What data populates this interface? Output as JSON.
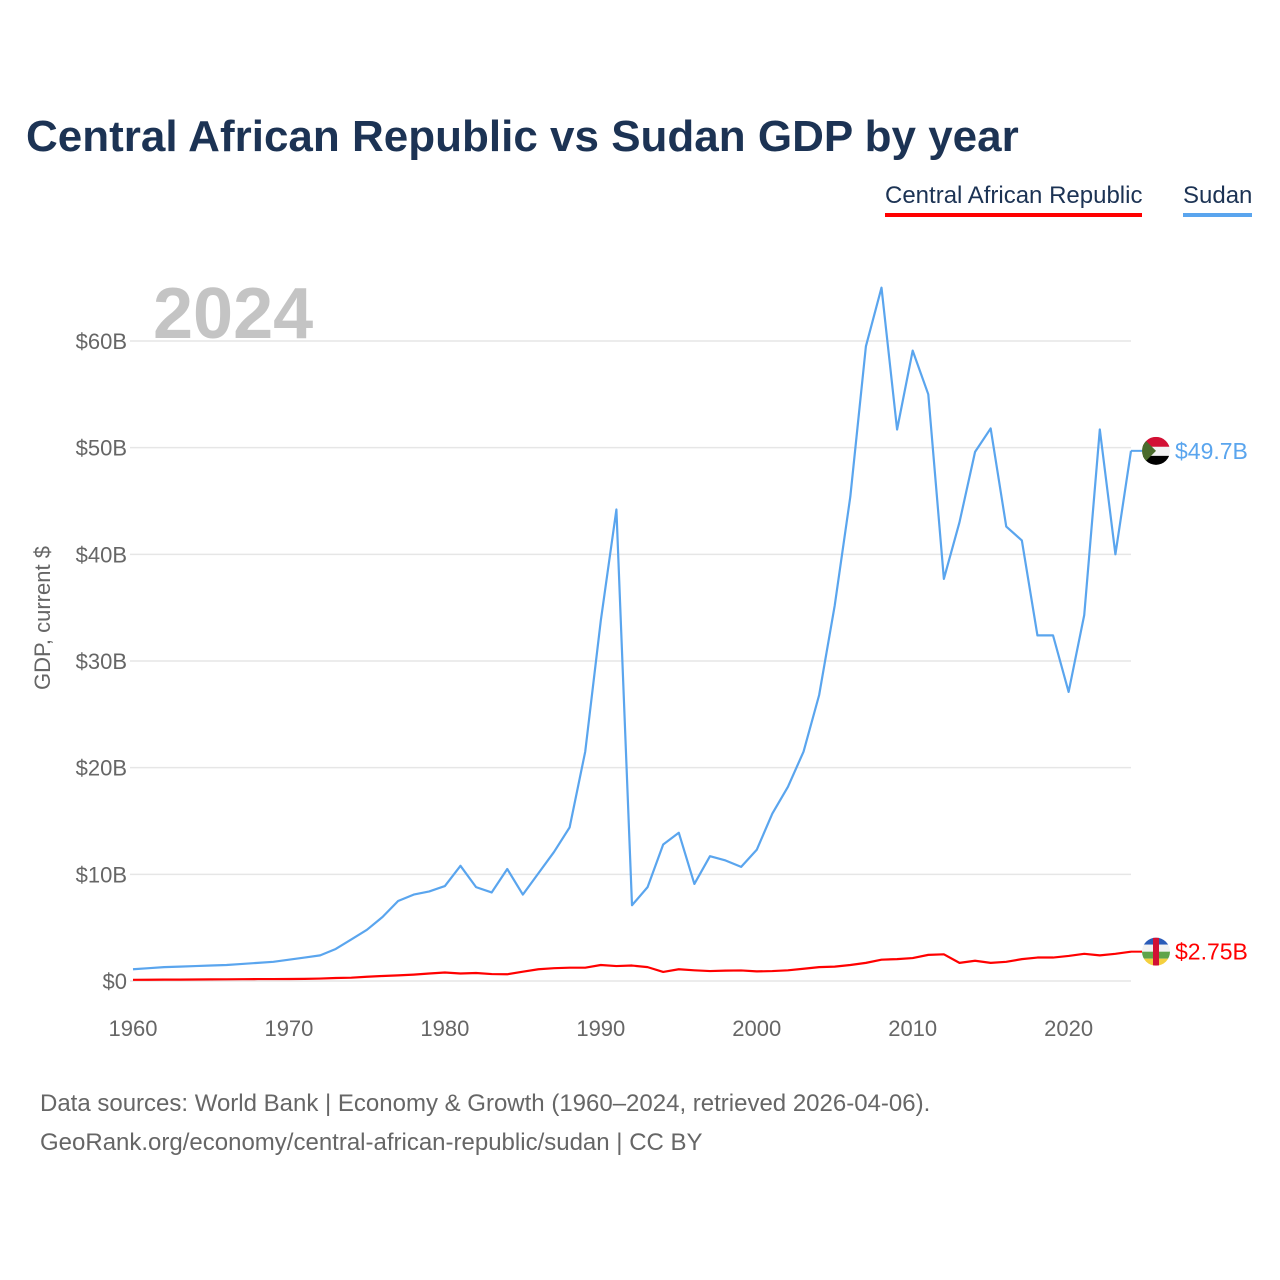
{
  "chart_data": {
    "type": "line",
    "title": "Central African Republic vs Sudan GDP by year",
    "ylabel": "GDP, current $",
    "xlabel": "",
    "year_label": "2024",
    "xlim": [
      1960,
      2024
    ],
    "ylim": [
      0,
      65
    ],
    "x_ticks": [
      "1960",
      "1970",
      "1980",
      "1990",
      "2000",
      "2010",
      "2020"
    ],
    "y_ticks": [
      "$0",
      "$10B",
      "$20B",
      "$30B",
      "$40B",
      "$50B",
      "$60B"
    ],
    "grid": true,
    "legend_placement": "top-right",
    "x": [
      1960,
      1961,
      1962,
      1963,
      1964,
      1965,
      1966,
      1967,
      1968,
      1969,
      1970,
      1971,
      1972,
      1973,
      1974,
      1975,
      1976,
      1977,
      1978,
      1979,
      1980,
      1981,
      1982,
      1983,
      1984,
      1985,
      1986,
      1987,
      1988,
      1989,
      1990,
      1991,
      1992,
      1993,
      1994,
      1995,
      1996,
      1997,
      1998,
      1999,
      2000,
      2001,
      2002,
      2003,
      2004,
      2005,
      2006,
      2007,
      2008,
      2009,
      2010,
      2011,
      2012,
      2013,
      2014,
      2015,
      2016,
      2017,
      2018,
      2019,
      2020,
      2021,
      2022,
      2023,
      2024
    ],
    "series": [
      {
        "name": "Central African Republic",
        "color": "#ff0000",
        "end_label": "$2.75B",
        "values": [
          0.11,
          0.12,
          0.13,
          0.13,
          0.14,
          0.15,
          0.16,
          0.17,
          0.18,
          0.18,
          0.19,
          0.2,
          0.23,
          0.28,
          0.31,
          0.4,
          0.47,
          0.53,
          0.6,
          0.7,
          0.8,
          0.7,
          0.75,
          0.65,
          0.63,
          0.87,
          1.1,
          1.2,
          1.25,
          1.25,
          1.5,
          1.4,
          1.45,
          1.3,
          0.85,
          1.1,
          1.0,
          0.93,
          0.97,
          0.99,
          0.9,
          0.93,
          1.0,
          1.15,
          1.3,
          1.35,
          1.5,
          1.7,
          2.0,
          2.05,
          2.15,
          2.45,
          2.5,
          1.7,
          1.9,
          1.7,
          1.8,
          2.05,
          2.2,
          2.2,
          2.35,
          2.55,
          2.4,
          2.55,
          2.75
        ]
      },
      {
        "name": "Sudan",
        "color": "#5aa5ee",
        "end_label": "$49.7B",
        "values": [
          1.1,
          1.2,
          1.3,
          1.35,
          1.4,
          1.45,
          1.5,
          1.6,
          1.7,
          1.8,
          2.0,
          2.2,
          2.4,
          3.0,
          3.9,
          4.8,
          6.0,
          7.5,
          8.1,
          8.4,
          8.9,
          10.8,
          8.8,
          8.3,
          10.5,
          8.1,
          10.1,
          12.1,
          14.4,
          21.5,
          33.8,
          44.2,
          7.1,
          8.8,
          12.8,
          13.9,
          9.1,
          11.7,
          11.3,
          10.7,
          12.3,
          15.7,
          18.2,
          21.5,
          26.8,
          35.2,
          45.4,
          59.5,
          65.0,
          51.7,
          59.1,
          55.0,
          37.7,
          43.0,
          49.6,
          51.8,
          42.6,
          41.3,
          32.4,
          32.4,
          27.1,
          34.3,
          51.7,
          40.0,
          49.7
        ]
      }
    ]
  },
  "footer": {
    "line1": "Data sources: World Bank | Economy & Growth (1960–2024, retrieved 2026-04-06).",
    "line2": "GeoRank.org/economy/central-african-republic/sudan | CC BY"
  }
}
